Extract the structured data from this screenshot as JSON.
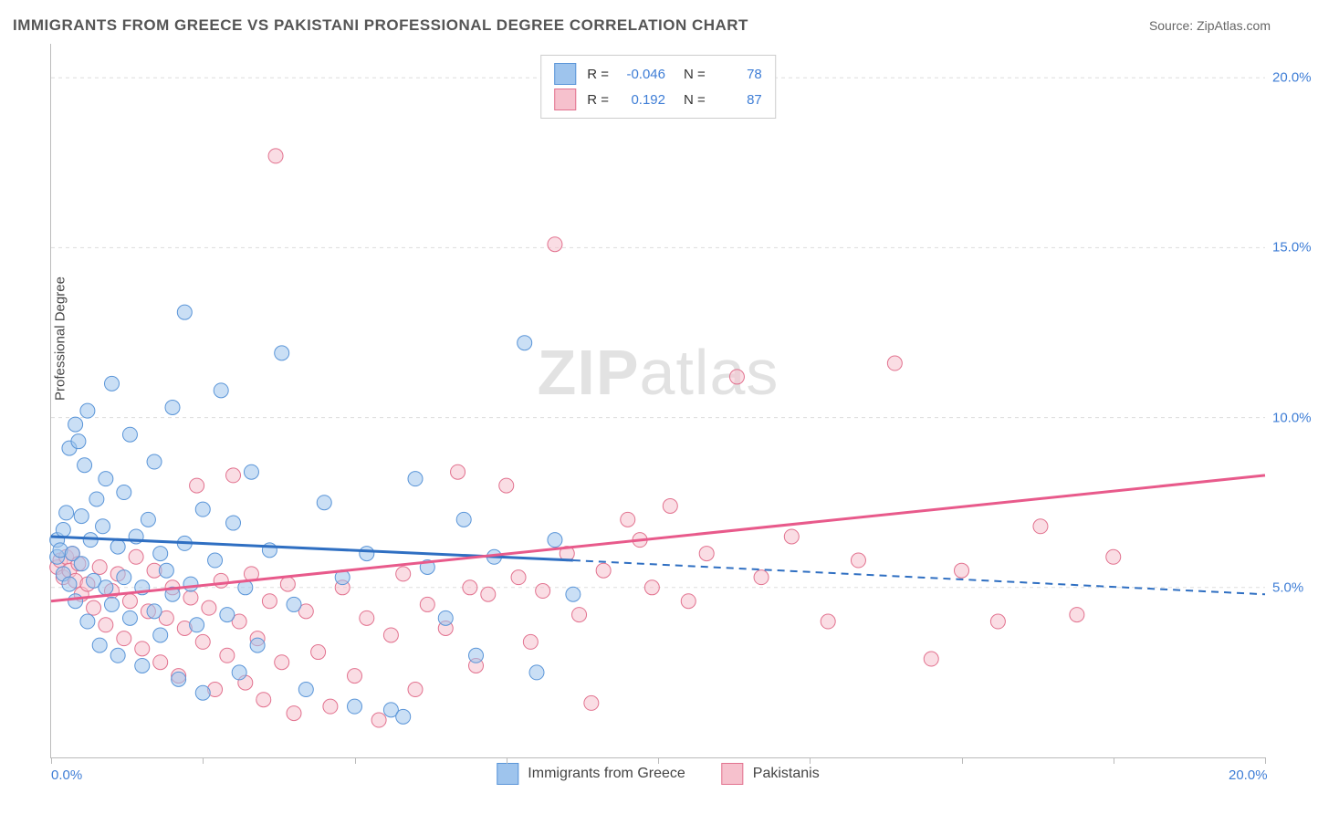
{
  "title": "IMMIGRANTS FROM GREECE VS PAKISTANI PROFESSIONAL DEGREE CORRELATION CHART",
  "source_label": "Source: ",
  "source_value": "ZipAtlas.com",
  "ylabel": "Professional Degree",
  "watermark_bold": "ZIP",
  "watermark_rest": "atlas",
  "chart": {
    "type": "scatter-correlation",
    "xlim": [
      0,
      20
    ],
    "ylim": [
      0,
      21
    ],
    "x_ticks": [
      0,
      2.5,
      5,
      7.5,
      10,
      12.5,
      15,
      17.5,
      20
    ],
    "x_tick_labels": {
      "0": "0.0%",
      "20": "20.0%"
    },
    "y_gridlines": [
      5,
      10,
      15,
      20
    ],
    "y_tick_labels": {
      "5": "5.0%",
      "10": "10.0%",
      "15": "15.0%",
      "20": "20.0%"
    },
    "grid_color": "#dddddd",
    "axis_color": "#bbbbbb",
    "background_color": "#ffffff",
    "tick_label_color": "#3f7ed6",
    "tick_label_fontsize": 15,
    "title_fontsize": 17,
    "title_color": "#555555",
    "marker_radius": 8,
    "marker_opacity": 0.55,
    "series": [
      {
        "name": "Immigrants from Greece",
        "fill": "#9ec4ed",
        "stroke": "#5a95d8",
        "line_color": "#2f6fc2",
        "line_width": 3,
        "regression": {
          "x1": 0,
          "y1": 6.5,
          "x2": 8.6,
          "y2": 5.8,
          "dash_x2": 20,
          "dash_y2": 4.8
        },
        "r_value": "-0.046",
        "n_value": "78",
        "points": [
          [
            0.1,
            6.4
          ],
          [
            0.1,
            5.9
          ],
          [
            0.15,
            6.1
          ],
          [
            0.2,
            6.7
          ],
          [
            0.2,
            5.4
          ],
          [
            0.25,
            7.2
          ],
          [
            0.3,
            5.1
          ],
          [
            0.3,
            9.1
          ],
          [
            0.35,
            6.0
          ],
          [
            0.4,
            9.8
          ],
          [
            0.4,
            4.6
          ],
          [
            0.45,
            9.3
          ],
          [
            0.5,
            7.1
          ],
          [
            0.5,
            5.7
          ],
          [
            0.55,
            8.6
          ],
          [
            0.6,
            4.0
          ],
          [
            0.6,
            10.2
          ],
          [
            0.65,
            6.4
          ],
          [
            0.7,
            5.2
          ],
          [
            0.75,
            7.6
          ],
          [
            0.8,
            3.3
          ],
          [
            0.85,
            6.8
          ],
          [
            0.9,
            5.0
          ],
          [
            0.9,
            8.2
          ],
          [
            1.0,
            4.5
          ],
          [
            1.0,
            11.0
          ],
          [
            1.1,
            6.2
          ],
          [
            1.1,
            3.0
          ],
          [
            1.2,
            7.8
          ],
          [
            1.2,
            5.3
          ],
          [
            1.3,
            9.5
          ],
          [
            1.3,
            4.1
          ],
          [
            1.4,
            6.5
          ],
          [
            1.5,
            5.0
          ],
          [
            1.5,
            2.7
          ],
          [
            1.6,
            7.0
          ],
          [
            1.7,
            4.3
          ],
          [
            1.7,
            8.7
          ],
          [
            1.8,
            6.0
          ],
          [
            1.8,
            3.6
          ],
          [
            1.9,
            5.5
          ],
          [
            2.0,
            10.3
          ],
          [
            2.0,
            4.8
          ],
          [
            2.1,
            2.3
          ],
          [
            2.2,
            6.3
          ],
          [
            2.2,
            13.1
          ],
          [
            2.3,
            5.1
          ],
          [
            2.4,
            3.9
          ],
          [
            2.5,
            7.3
          ],
          [
            2.5,
            1.9
          ],
          [
            2.7,
            5.8
          ],
          [
            2.8,
            10.8
          ],
          [
            2.9,
            4.2
          ],
          [
            3.0,
            6.9
          ],
          [
            3.1,
            2.5
          ],
          [
            3.2,
            5.0
          ],
          [
            3.3,
            8.4
          ],
          [
            3.4,
            3.3
          ],
          [
            3.6,
            6.1
          ],
          [
            3.8,
            11.9
          ],
          [
            4.0,
            4.5
          ],
          [
            4.2,
            2.0
          ],
          [
            4.5,
            7.5
          ],
          [
            4.8,
            5.3
          ],
          [
            5.0,
            1.5
          ],
          [
            5.2,
            6.0
          ],
          [
            5.6,
            1.4
          ],
          [
            5.8,
            1.2
          ],
          [
            6.0,
            8.2
          ],
          [
            6.2,
            5.6
          ],
          [
            6.5,
            4.1
          ],
          [
            6.8,
            7.0
          ],
          [
            7.0,
            3.0
          ],
          [
            7.3,
            5.9
          ],
          [
            7.8,
            12.2
          ],
          [
            8.0,
            2.5
          ],
          [
            8.3,
            6.4
          ],
          [
            8.6,
            4.8
          ]
        ]
      },
      {
        "name": "Pakistanis",
        "fill": "#f6c1cd",
        "stroke": "#e2728f",
        "line_color": "#e85a8b",
        "line_width": 3,
        "regression": {
          "x1": 0,
          "y1": 4.6,
          "x2": 20,
          "y2": 8.3
        },
        "r_value": "0.192",
        "n_value": "87",
        "points": [
          [
            0.1,
            5.6
          ],
          [
            0.15,
            5.8
          ],
          [
            0.2,
            5.3
          ],
          [
            0.25,
            5.9
          ],
          [
            0.3,
            5.5
          ],
          [
            0.35,
            6.0
          ],
          [
            0.4,
            5.2
          ],
          [
            0.45,
            5.7
          ],
          [
            0.5,
            4.8
          ],
          [
            0.6,
            5.1
          ],
          [
            0.7,
            4.4
          ],
          [
            0.8,
            5.6
          ],
          [
            0.9,
            3.9
          ],
          [
            1.0,
            4.9
          ],
          [
            1.1,
            5.4
          ],
          [
            1.2,
            3.5
          ],
          [
            1.3,
            4.6
          ],
          [
            1.4,
            5.9
          ],
          [
            1.5,
            3.2
          ],
          [
            1.6,
            4.3
          ],
          [
            1.7,
            5.5
          ],
          [
            1.8,
            2.8
          ],
          [
            1.9,
            4.1
          ],
          [
            2.0,
            5.0
          ],
          [
            2.1,
            2.4
          ],
          [
            2.2,
            3.8
          ],
          [
            2.3,
            4.7
          ],
          [
            2.4,
            8.0
          ],
          [
            2.5,
            3.4
          ],
          [
            2.6,
            4.4
          ],
          [
            2.7,
            2.0
          ],
          [
            2.8,
            5.2
          ],
          [
            2.9,
            3.0
          ],
          [
            3.0,
            8.3
          ],
          [
            3.1,
            4.0
          ],
          [
            3.2,
            2.2
          ],
          [
            3.3,
            5.4
          ],
          [
            3.4,
            3.5
          ],
          [
            3.5,
            1.7
          ],
          [
            3.6,
            4.6
          ],
          [
            3.7,
            17.7
          ],
          [
            3.8,
            2.8
          ],
          [
            3.9,
            5.1
          ],
          [
            4.0,
            1.3
          ],
          [
            4.2,
            4.3
          ],
          [
            4.4,
            3.1
          ],
          [
            4.6,
            1.5
          ],
          [
            4.8,
            5.0
          ],
          [
            5.0,
            2.4
          ],
          [
            5.2,
            4.1
          ],
          [
            5.4,
            1.1
          ],
          [
            5.6,
            3.6
          ],
          [
            5.8,
            5.4
          ],
          [
            6.0,
            2.0
          ],
          [
            6.2,
            4.5
          ],
          [
            6.5,
            3.8
          ],
          [
            6.7,
            8.4
          ],
          [
            6.9,
            5.0
          ],
          [
            7.0,
            2.7
          ],
          [
            7.2,
            4.8
          ],
          [
            7.5,
            8.0
          ],
          [
            7.7,
            5.3
          ],
          [
            7.9,
            3.4
          ],
          [
            8.1,
            4.9
          ],
          [
            8.3,
            15.1
          ],
          [
            8.5,
            6.0
          ],
          [
            8.7,
            4.2
          ],
          [
            8.9,
            1.6
          ],
          [
            9.1,
            5.5
          ],
          [
            9.5,
            7.0
          ],
          [
            9.7,
            6.4
          ],
          [
            9.9,
            5.0
          ],
          [
            10.2,
            7.4
          ],
          [
            10.5,
            4.6
          ],
          [
            10.8,
            6.0
          ],
          [
            11.3,
            11.2
          ],
          [
            11.7,
            5.3
          ],
          [
            12.2,
            6.5
          ],
          [
            12.8,
            4.0
          ],
          [
            13.3,
            5.8
          ],
          [
            13.9,
            11.6
          ],
          [
            14.5,
            2.9
          ],
          [
            15.0,
            5.5
          ],
          [
            15.6,
            4.0
          ],
          [
            16.3,
            6.8
          ],
          [
            16.9,
            4.2
          ],
          [
            17.5,
            5.9
          ]
        ]
      }
    ]
  },
  "legend_top": {
    "r_label": "R =",
    "n_label": "N ="
  },
  "legend_bottom_labels": [
    "Immigrants from Greece",
    "Pakistanis"
  ]
}
